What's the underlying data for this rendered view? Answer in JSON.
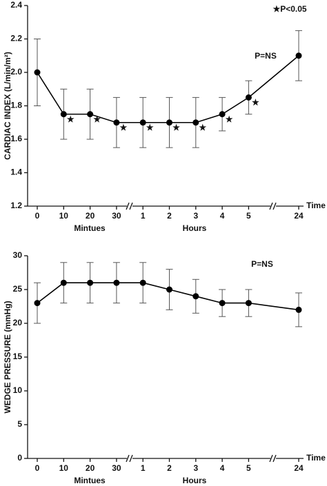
{
  "chart_data": [
    {
      "type": "line",
      "y_label": "CARDIAC INDEX (L/min/m²)",
      "x_label": "Time",
      "categories": [
        "0",
        "10",
        "20",
        "30",
        "1",
        "2",
        "3",
        "4",
        "5",
        "24"
      ],
      "x_group_labels": [
        "Mintues",
        "Hours"
      ],
      "values": [
        2.0,
        1.75,
        1.75,
        1.7,
        1.7,
        1.7,
        1.7,
        1.75,
        1.85,
        2.1
      ],
      "errors": [
        0.2,
        0.15,
        0.15,
        0.15,
        0.15,
        0.15,
        0.15,
        0.1,
        0.1,
        0.15
      ],
      "point_markers": [
        null,
        "★",
        "★",
        "★",
        "★",
        "★",
        "★",
        "★",
        "★",
        null
      ],
      "color": "#000000",
      "ylim": [
        1.2,
        2.4
      ],
      "yticks": [
        1.2,
        1.4,
        1.6,
        1.8,
        {
          "value": 2,
          "label": "2.0"
        },
        2.2,
        2.4
      ],
      "annotations": [
        "★P<0.05",
        "P=NS"
      ]
    },
    {
      "type": "line",
      "y_label": "WEDGE PRESSURE (mmHg)",
      "x_label": "Time",
      "categories": [
        "0",
        "10",
        "20",
        "30",
        "1",
        "2",
        "3",
        "4",
        "5",
        "24"
      ],
      "x_group_labels": [
        "Mintues",
        "Hours"
      ],
      "values": [
        23,
        26,
        26,
        26,
        26,
        25,
        24,
        23,
        23,
        22
      ],
      "errors": [
        3,
        3,
        3,
        3,
        3,
        3,
        2.5,
        2,
        2,
        2.5
      ],
      "color": "#000000",
      "ylim": [
        0,
        30
      ],
      "yticks": [
        0,
        5,
        10,
        15,
        20,
        25,
        30
      ],
      "annotations": [
        "P=NS"
      ]
    }
  ]
}
